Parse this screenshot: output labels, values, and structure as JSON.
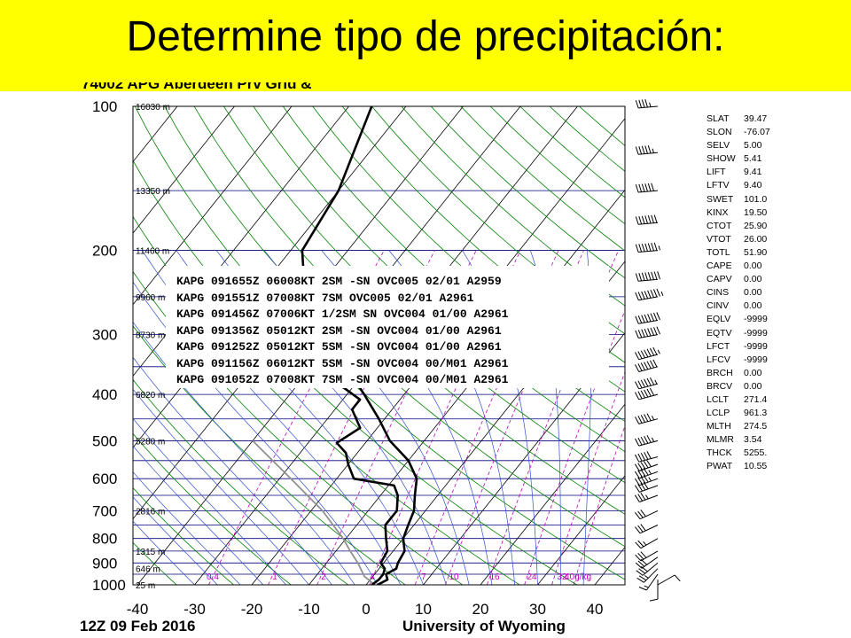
{
  "slide": {
    "title": "Determine tipo de precipitación:"
  },
  "station_title": "74002 APG Aberdeen Prv Grid &",
  "footer": {
    "left": "12Z 09 Feb 2016",
    "right": "University of Wyoming"
  },
  "metar_reports": [
    "KAPG 091655Z 06008KT 2SM -SN OVC005 02/01 A2959",
    "KAPG 091551Z 07008KT 7SM OVC005 02/01 A2961",
    "KAPG 091456Z 07006KT 1/2SM SN OVC004 01/00 A2961",
    "KAPG 091356Z 05012KT 2SM -SN OVC004 01/00 A2961",
    "KAPG 091252Z 05012KT 5SM -SN OVC004 01/00 A2961",
    "KAPG 091156Z 06012KT 5SM -SN OVC004 00/M01 A2961",
    "KAPG 091052Z 07008KT 7SM -SN OVC004 00/M01 A2961"
  ],
  "indices": [
    {
      "name": "SLAT",
      "value": "39.47"
    },
    {
      "name": "SLON",
      "value": "-76.07"
    },
    {
      "name": "SELV",
      "value": "5.00"
    },
    {
      "name": "SHOW",
      "value": "5.41"
    },
    {
      "name": "LIFT",
      "value": "9.41"
    },
    {
      "name": "LFTV",
      "value": "9.40"
    },
    {
      "name": "SWET",
      "value": "101.0"
    },
    {
      "name": "KINX",
      "value": "19.50"
    },
    {
      "name": "CTOT",
      "value": "25.90"
    },
    {
      "name": "VTOT",
      "value": "26.00"
    },
    {
      "name": "TOTL",
      "value": "51.90"
    },
    {
      "name": "CAPE",
      "value": "0.00"
    },
    {
      "name": "CAPV",
      "value": "0.00"
    },
    {
      "name": "CINS",
      "value": "0.00"
    },
    {
      "name": "CINV",
      "value": "0.00"
    },
    {
      "name": "EQLV",
      "value": "-9999"
    },
    {
      "name": "EQTV",
      "value": "-9999"
    },
    {
      "name": "LFCT",
      "value": "-9999"
    },
    {
      "name": "LFCV",
      "value": "-9999"
    },
    {
      "name": "BRCH",
      "value": "0.00"
    },
    {
      "name": "BRCV",
      "value": "0.00"
    },
    {
      "name": "LCLT",
      "value": "271.4"
    },
    {
      "name": "LCLP",
      "value": "961.3"
    },
    {
      "name": "MLTH",
      "value": "274.5"
    },
    {
      "name": "MLMR",
      "value": "3.54"
    },
    {
      "name": "THCK",
      "value": "5255."
    },
    {
      "name": "PWAT",
      "value": "10.55"
    }
  ],
  "chart_data": {
    "type": "skew-t log-p sounding",
    "y_axis": {
      "scale": "log",
      "ticks": [
        100,
        200,
        300,
        400,
        500,
        600,
        700,
        800,
        900,
        1000
      ],
      "range": [
        1000,
        100
      ]
    },
    "x_axis": {
      "ticks": [
        -40,
        -30,
        -20,
        -10,
        0,
        10,
        20,
        30,
        40
      ],
      "range": [
        -40,
        45
      ]
    },
    "height_labels": [
      {
        "p": 100,
        "label": "16030 m"
      },
      {
        "p": 150,
        "label": "13350 m"
      },
      {
        "p": 200,
        "label": "11460 m"
      },
      {
        "p": 250,
        "label": "9960 m"
      },
      {
        "p": 300,
        "label": "8730 m"
      },
      {
        "p": 400,
        "label": "6820 m"
      },
      {
        "p": 500,
        "label": "5280 m"
      },
      {
        "p": 700,
        "label": "2816 m"
      },
      {
        "p": 850,
        "label": "1315 m"
      },
      {
        "p": 925,
        "label": "646 m"
      },
      {
        "p": 1000,
        "label": "25 m"
      }
    ],
    "mixing_ratio_labels": [
      "0.4",
      "1",
      "2",
      "4",
      "7",
      "10",
      "16",
      "24",
      "32",
      "40g/kg"
    ],
    "mixing_ratio_values": [
      0.4,
      1,
      2,
      4,
      7,
      10,
      16,
      24,
      32,
      40
    ],
    "temperature_profile": [
      {
        "p": 1000,
        "t": 2
      },
      {
        "p": 975,
        "t": 3
      },
      {
        "p": 950,
        "t": 2
      },
      {
        "p": 925,
        "t": 3
      },
      {
        "p": 900,
        "t": 2.5
      },
      {
        "p": 850,
        "t": 2
      },
      {
        "p": 800,
        "t": 0
      },
      {
        "p": 750,
        "t": -1
      },
      {
        "p": 700,
        "t": -2
      },
      {
        "p": 650,
        "t": -4
      },
      {
        "p": 600,
        "t": -6
      },
      {
        "p": 550,
        "t": -10
      },
      {
        "p": 500,
        "t": -16
      },
      {
        "p": 450,
        "t": -21
      },
      {
        "p": 400,
        "t": -27
      },
      {
        "p": 350,
        "t": -34
      },
      {
        "p": 300,
        "t": -42
      },
      {
        "p": 250,
        "t": -51
      },
      {
        "p": 200,
        "t": -58
      },
      {
        "p": 150,
        "t": -60
      },
      {
        "p": 100,
        "t": -66
      }
    ],
    "dewpoint_profile": [
      {
        "p": 1000,
        "t": 1
      },
      {
        "p": 975,
        "t": 1.5
      },
      {
        "p": 950,
        "t": 1.5
      },
      {
        "p": 925,
        "t": 1
      },
      {
        "p": 900,
        "t": -0.5
      },
      {
        "p": 850,
        "t": -1
      },
      {
        "p": 800,
        "t": -3
      },
      {
        "p": 750,
        "t": -5
      },
      {
        "p": 700,
        "t": -5
      },
      {
        "p": 650,
        "t": -7
      },
      {
        "p": 620,
        "t": -9
      },
      {
        "p": 600,
        "t": -17
      },
      {
        "p": 560,
        "t": -20
      },
      {
        "p": 530,
        "t": -22
      },
      {
        "p": 505,
        "t": -25
      },
      {
        "p": 470,
        "t": -23
      },
      {
        "p": 430,
        "t": -27
      },
      {
        "p": 410,
        "t": -27
      },
      {
        "p": 380,
        "t": -33
      }
    ],
    "parcel_profile": [
      {
        "p": 1000,
        "t": 1.5
      },
      {
        "p": 960,
        "t": -1.5
      },
      {
        "p": 900,
        "t": -4.5
      },
      {
        "p": 850,
        "t": -7.5
      },
      {
        "p": 800,
        "t": -10.5
      },
      {
        "p": 700,
        "t": -18
      },
      {
        "p": 600,
        "t": -28
      },
      {
        "p": 500,
        "t": -40
      }
    ],
    "wind_barbs": [
      {
        "p": 1000,
        "dir": 60,
        "spd": 10
      },
      {
        "p": 975,
        "dir": 180,
        "spd": 10
      },
      {
        "p": 950,
        "dir": 215,
        "spd": 15
      },
      {
        "p": 925,
        "dir": 225,
        "spd": 25
      },
      {
        "p": 900,
        "dir": 230,
        "spd": 30
      },
      {
        "p": 875,
        "dir": 235,
        "spd": 30
      },
      {
        "p": 850,
        "dir": 240,
        "spd": 30
      },
      {
        "p": 800,
        "dir": 240,
        "spd": 25
      },
      {
        "p": 750,
        "dir": 245,
        "spd": 30
      },
      {
        "p": 700,
        "dir": 245,
        "spd": 30
      },
      {
        "p": 650,
        "dir": 250,
        "spd": 35
      },
      {
        "p": 620,
        "dir": 250,
        "spd": 40
      },
      {
        "p": 600,
        "dir": 250,
        "spd": 45
      },
      {
        "p": 580,
        "dir": 250,
        "spd": 45
      },
      {
        "p": 560,
        "dir": 250,
        "spd": 50
      },
      {
        "p": 540,
        "dir": 255,
        "spd": 50
      },
      {
        "p": 500,
        "dir": 255,
        "spd": 55
      },
      {
        "p": 450,
        "dir": 255,
        "spd": 55
      },
      {
        "p": 400,
        "dir": 255,
        "spd": 60
      },
      {
        "p": 380,
        "dir": 255,
        "spd": 65
      },
      {
        "p": 350,
        "dir": 255,
        "spd": 70
      },
      {
        "p": 330,
        "dir": 255,
        "spd": 75
      },
      {
        "p": 300,
        "dir": 260,
        "spd": 80
      },
      {
        "p": 280,
        "dir": 260,
        "spd": 80
      },
      {
        "p": 250,
        "dir": 260,
        "spd": 85
      },
      {
        "p": 230,
        "dir": 265,
        "spd": 80
      },
      {
        "p": 200,
        "dir": 265,
        "spd": 75
      },
      {
        "p": 175,
        "dir": 265,
        "spd": 70
      },
      {
        "p": 150,
        "dir": 265,
        "spd": 60
      },
      {
        "p": 125,
        "dir": 265,
        "spd": 55
      },
      {
        "p": 100,
        "dir": 265,
        "spd": 45
      }
    ]
  }
}
